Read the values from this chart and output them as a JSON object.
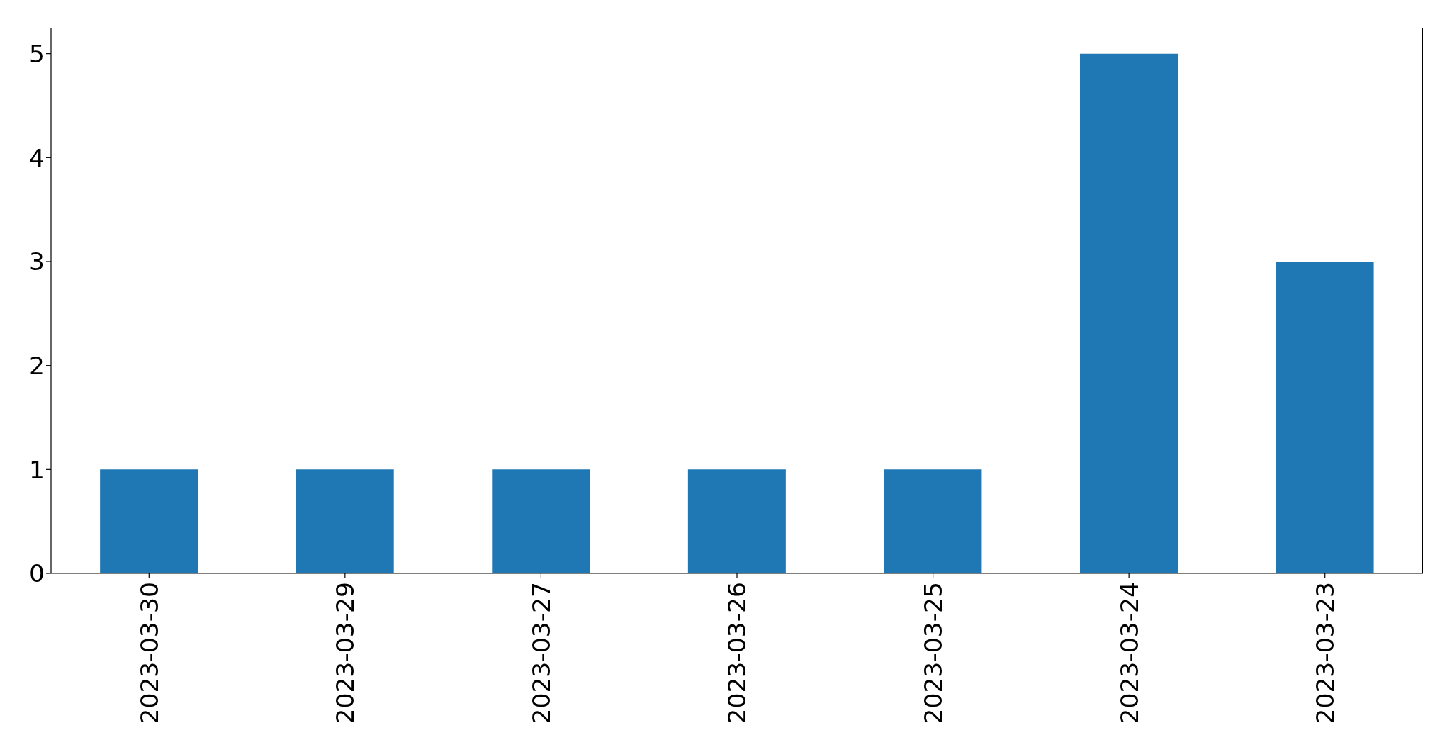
{
  "chart_data": {
    "type": "bar",
    "categories": [
      "2023-03-30",
      "2023-03-29",
      "2023-03-27",
      "2023-03-26",
      "2023-03-25",
      "2023-03-24",
      "2023-03-23"
    ],
    "values": [
      1,
      1,
      1,
      1,
      1,
      5,
      3
    ],
    "color": "#1f77b4",
    "ylim": [
      0,
      5.25
    ],
    "yticks": [
      0,
      1,
      2,
      3,
      4,
      5
    ]
  }
}
